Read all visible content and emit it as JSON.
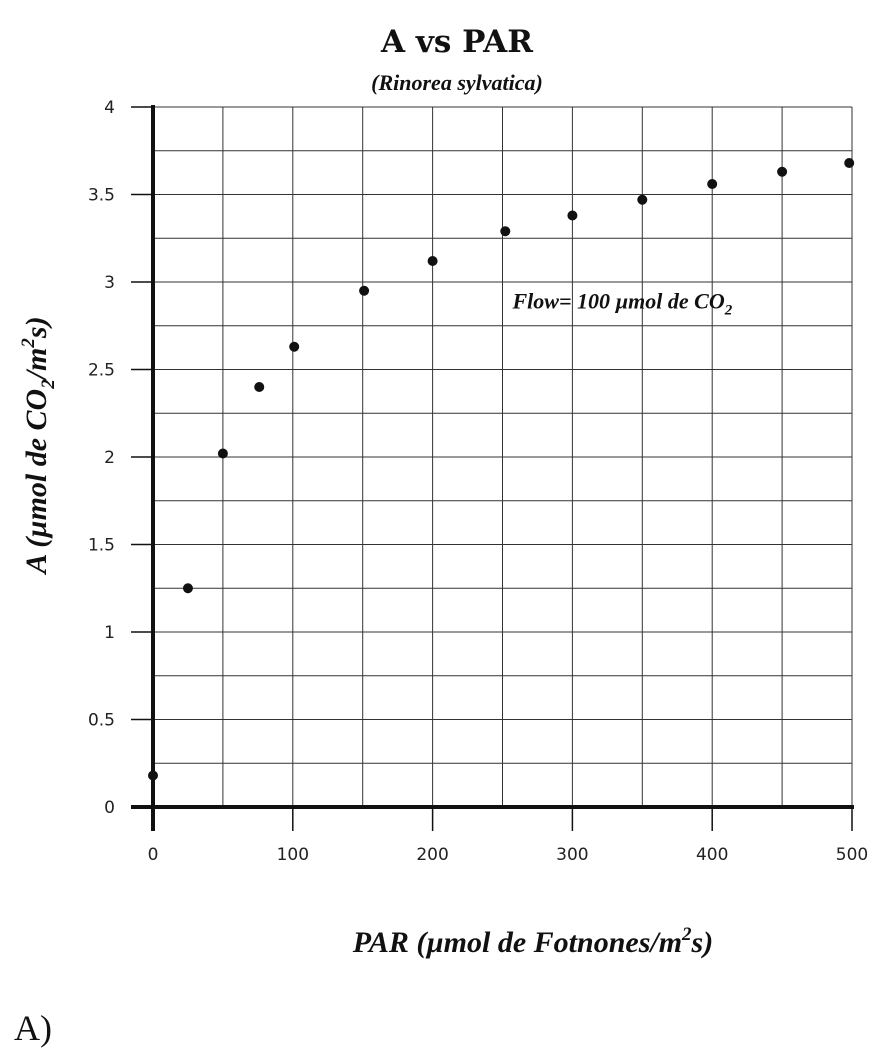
{
  "chart_data": {
    "type": "scatter",
    "title": "A vs PAR",
    "subtitle": "(Rinorea sylvatica)",
    "xlabel": {
      "prefix": "PAR (µmol de Fotnones/m",
      "sup": "2",
      "suffix": "s)"
    },
    "ylabel": {
      "prefix": "A (µmol de CO",
      "sub": "2",
      "mid": "/m",
      "sup": "2",
      "suffix": "s)"
    },
    "annotation": {
      "prefix": "Flow= 100 µmol de CO",
      "sub": "2",
      "x": 250,
      "y": 2.85
    },
    "xlim": [
      0,
      500
    ],
    "ylim": [
      0,
      4
    ],
    "xticks": [
      0,
      100,
      200,
      300,
      400,
      500
    ],
    "xtick_labels": [
      "0",
      "100",
      "200",
      "300",
      "400",
      "500"
    ],
    "yticks": [
      0,
      0.5,
      1,
      1.5,
      2,
      2.5,
      3,
      3.5,
      4
    ],
    "ytick_labels": [
      "0",
      "0.5",
      "1",
      "1.5",
      "2",
      "2.5",
      "3",
      "3.5",
      "4"
    ],
    "x_grid_step": 50,
    "y_grid_step": 0.25,
    "grid": true,
    "marker_color": "#111111",
    "points": [
      {
        "x": 0,
        "y": 0.18
      },
      {
        "x": 25,
        "y": 1.25
      },
      {
        "x": 50,
        "y": 2.02
      },
      {
        "x": 76,
        "y": 2.4
      },
      {
        "x": 101,
        "y": 2.63
      },
      {
        "x": 151,
        "y": 2.95
      },
      {
        "x": 200,
        "y": 3.12
      },
      {
        "x": 252,
        "y": 3.29
      },
      {
        "x": 300,
        "y": 3.38
      },
      {
        "x": 350,
        "y": 3.47
      },
      {
        "x": 400,
        "y": 3.56
      },
      {
        "x": 450,
        "y": 3.63
      },
      {
        "x": 498,
        "y": 3.68
      }
    ]
  },
  "panel_label": "A)"
}
